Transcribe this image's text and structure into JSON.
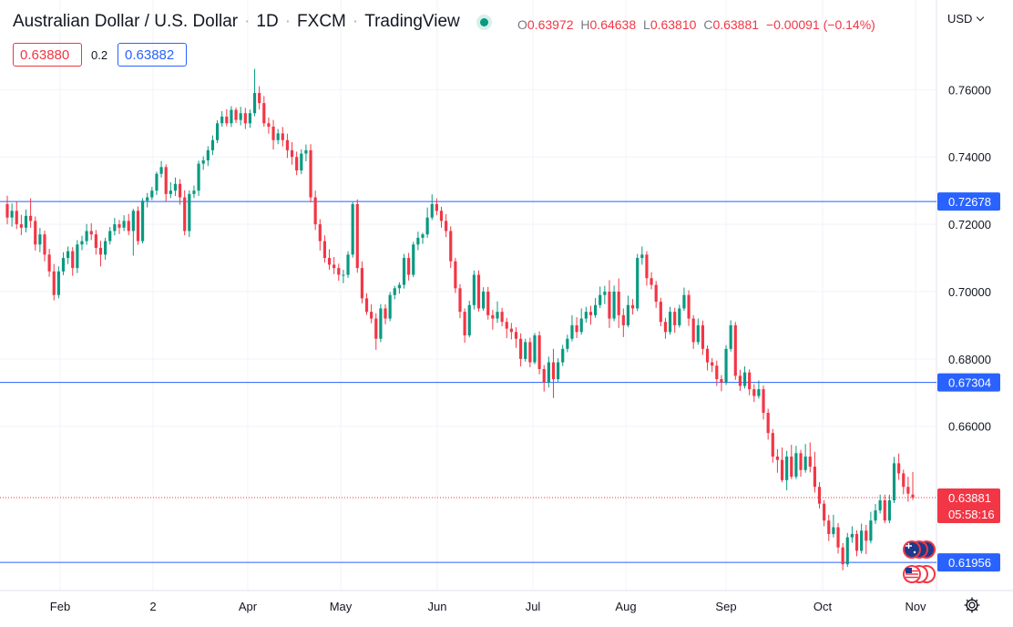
{
  "header": {
    "symbol_name": "Australian Dollar / U.S. Dollar",
    "interval": "1D",
    "exchange": "FXCM",
    "source": "TradingView",
    "ohlc": {
      "o_label": "O",
      "o": "0.63972",
      "h_label": "H",
      "h": "0.64638",
      "l_label": "L",
      "l": "0.63810",
      "c_label": "C",
      "c": "0.63881",
      "change": "−0.00091 (−0.14%)"
    },
    "currency": "USD"
  },
  "trade": {
    "sell_price": "0.63880",
    "spread": "0.2",
    "buy_price": "0.63882"
  },
  "colors": {
    "up": "#089981",
    "down": "#f23645",
    "level_line": "#2962ff",
    "grid": "#f0f3fa"
  },
  "icons": [
    "live-status-icon",
    "currency-chevron-icon",
    "au-flag-icon",
    "us-flag-icon",
    "settings-gear-icon"
  ],
  "chart_data": {
    "type": "candlestick",
    "x_tick_labels": [
      "Feb",
      "2",
      "Apr",
      "May",
      "Jun",
      "Jul",
      "Aug",
      "Sep",
      "Oct",
      "Nov"
    ],
    "y_tick_labels": [
      "0.76000",
      "0.74000",
      "0.72000",
      "0.70000",
      "0.68000",
      "0.66000"
    ],
    "ylim": [
      0.6112,
      0.7758
    ],
    "grid": true,
    "horizontal_levels": [
      {
        "value": 0.72678,
        "label": "0.72678"
      },
      {
        "value": 0.67304,
        "label": "0.67304"
      },
      {
        "value": 0.61956,
        "label": "0.61956"
      }
    ],
    "last_price": {
      "value": 0.63881,
      "label": "0.63881",
      "countdown": "05:58:16"
    },
    "candles": [
      [
        0.726,
        0.7285,
        0.72,
        0.722
      ],
      [
        0.722,
        0.7262,
        0.7193,
        0.724
      ],
      [
        0.724,
        0.7268,
        0.7186,
        0.72
      ],
      [
        0.72,
        0.7228,
        0.7168,
        0.719
      ],
      [
        0.719,
        0.7244,
        0.7176,
        0.7225
      ],
      [
        0.7225,
        0.7277,
        0.719,
        0.721
      ],
      [
        0.721,
        0.7223,
        0.7122,
        0.714
      ],
      [
        0.714,
        0.7189,
        0.7117,
        0.717
      ],
      [
        0.717,
        0.7181,
        0.709,
        0.711
      ],
      [
        0.711,
        0.7127,
        0.7044,
        0.706
      ],
      [
        0.706,
        0.7082,
        0.6974,
        0.699
      ],
      [
        0.699,
        0.7075,
        0.698,
        0.706
      ],
      [
        0.706,
        0.7117,
        0.7049,
        0.71
      ],
      [
        0.71,
        0.7134,
        0.7082,
        0.712
      ],
      [
        0.712,
        0.7132,
        0.7047,
        0.707
      ],
      [
        0.707,
        0.7153,
        0.7055,
        0.714
      ],
      [
        0.714,
        0.7166,
        0.7123,
        0.715
      ],
      [
        0.715,
        0.7201,
        0.7139,
        0.718
      ],
      [
        0.718,
        0.7203,
        0.7153,
        0.717
      ],
      [
        0.717,
        0.7183,
        0.711,
        0.713
      ],
      [
        0.713,
        0.7151,
        0.7075,
        0.711
      ],
      [
        0.711,
        0.716,
        0.7095,
        0.715
      ],
      [
        0.715,
        0.7192,
        0.714,
        0.718
      ],
      [
        0.718,
        0.7219,
        0.7167,
        0.72
      ],
      [
        0.72,
        0.7213,
        0.7171,
        0.719
      ],
      [
        0.719,
        0.7227,
        0.718,
        0.721
      ],
      [
        0.721,
        0.7231,
        0.7168,
        0.718
      ],
      [
        0.718,
        0.7246,
        0.7107,
        0.724
      ],
      [
        0.724,
        0.7253,
        0.7139,
        0.715
      ],
      [
        0.715,
        0.7278,
        0.7143,
        0.727
      ],
      [
        0.727,
        0.7293,
        0.725,
        0.728
      ],
      [
        0.728,
        0.7311,
        0.7272,
        0.73
      ],
      [
        0.73,
        0.7356,
        0.7287,
        0.735
      ],
      [
        0.735,
        0.7388,
        0.7339,
        0.737
      ],
      [
        0.737,
        0.7378,
        0.7268,
        0.729
      ],
      [
        0.729,
        0.7325,
        0.7278,
        0.73
      ],
      [
        0.73,
        0.7339,
        0.7284,
        0.732
      ],
      [
        0.732,
        0.7334,
        0.7258,
        0.728
      ],
      [
        0.728,
        0.7301,
        0.7167,
        0.718
      ],
      [
        0.718,
        0.7301,
        0.7162,
        0.729
      ],
      [
        0.729,
        0.7315,
        0.7278,
        0.73
      ],
      [
        0.73,
        0.7389,
        0.7284,
        0.738
      ],
      [
        0.738,
        0.7402,
        0.7362,
        0.739
      ],
      [
        0.739,
        0.7432,
        0.7373,
        0.742
      ],
      [
        0.742,
        0.7464,
        0.7406,
        0.745
      ],
      [
        0.745,
        0.7509,
        0.7441,
        0.75
      ],
      [
        0.75,
        0.7536,
        0.749,
        0.752
      ],
      [
        0.752,
        0.7542,
        0.7491,
        0.75
      ],
      [
        0.75,
        0.7551,
        0.7489,
        0.754
      ],
      [
        0.754,
        0.7547,
        0.7501,
        0.751
      ],
      [
        0.751,
        0.7549,
        0.7494,
        0.753
      ],
      [
        0.753,
        0.7546,
        0.7483,
        0.75
      ],
      [
        0.75,
        0.7541,
        0.7487,
        0.753
      ],
      [
        0.753,
        0.7662,
        0.7521,
        0.759
      ],
      [
        0.759,
        0.761,
        0.7541,
        0.756
      ],
      [
        0.756,
        0.7581,
        0.749,
        0.75
      ],
      [
        0.75,
        0.7517,
        0.7469,
        0.749
      ],
      [
        0.749,
        0.751,
        0.7422,
        0.745
      ],
      [
        0.745,
        0.7483,
        0.7438,
        0.747
      ],
      [
        0.747,
        0.7489,
        0.7431,
        0.745
      ],
      [
        0.745,
        0.7469,
        0.7397,
        0.742
      ],
      [
        0.742,
        0.7444,
        0.7377,
        0.74
      ],
      [
        0.74,
        0.7416,
        0.7346,
        0.736
      ],
      [
        0.736,
        0.7423,
        0.7349,
        0.741
      ],
      [
        0.741,
        0.7437,
        0.7387,
        0.742
      ],
      [
        0.742,
        0.7438,
        0.7265,
        0.728
      ],
      [
        0.728,
        0.73,
        0.7183,
        0.72
      ],
      [
        0.72,
        0.7215,
        0.7122,
        0.715
      ],
      [
        0.715,
        0.7167,
        0.7086,
        0.71
      ],
      [
        0.71,
        0.7126,
        0.7065,
        0.708
      ],
      [
        0.708,
        0.7103,
        0.7052,
        0.707
      ],
      [
        0.707,
        0.7083,
        0.7032,
        0.705
      ],
      [
        0.705,
        0.7065,
        0.7025,
        0.705
      ],
      [
        0.705,
        0.712,
        0.7041,
        0.711
      ],
      [
        0.711,
        0.7266,
        0.7101,
        0.726
      ],
      [
        0.726,
        0.7274,
        0.7056,
        0.707
      ],
      [
        0.707,
        0.709,
        0.6965,
        0.698
      ],
      [
        0.698,
        0.6995,
        0.6931,
        0.694
      ],
      [
        0.694,
        0.6962,
        0.6906,
        0.692
      ],
      [
        0.692,
        0.6936,
        0.6827,
        0.686
      ],
      [
        0.686,
        0.6963,
        0.685,
        0.695
      ],
      [
        0.695,
        0.6962,
        0.6903,
        0.692
      ],
      [
        0.692,
        0.6999,
        0.6912,
        0.699
      ],
      [
        0.699,
        0.7017,
        0.6977,
        0.701
      ],
      [
        0.701,
        0.7028,
        0.6994,
        0.702
      ],
      [
        0.702,
        0.7112,
        0.7009,
        0.71
      ],
      [
        0.71,
        0.7115,
        0.7033,
        0.705
      ],
      [
        0.705,
        0.7148,
        0.7043,
        0.714
      ],
      [
        0.714,
        0.7178,
        0.7123,
        0.716
      ],
      [
        0.716,
        0.7175,
        0.7142,
        0.717
      ],
      [
        0.717,
        0.725,
        0.716,
        0.722
      ],
      [
        0.722,
        0.7289,
        0.7213,
        0.726
      ],
      [
        0.726,
        0.7277,
        0.7227,
        0.724
      ],
      [
        0.724,
        0.7252,
        0.719,
        0.721
      ],
      [
        0.721,
        0.723,
        0.7162,
        0.718
      ],
      [
        0.718,
        0.7194,
        0.707,
        0.709
      ],
      [
        0.709,
        0.71,
        0.6996,
        0.701
      ],
      [
        0.701,
        0.7022,
        0.6921,
        0.694
      ],
      [
        0.694,
        0.695,
        0.6848,
        0.687
      ],
      [
        0.687,
        0.6973,
        0.6864,
        0.696
      ],
      [
        0.696,
        0.7063,
        0.6947,
        0.705
      ],
      [
        0.705,
        0.7063,
        0.6941,
        0.695
      ],
      [
        0.695,
        0.7013,
        0.6943,
        0.7
      ],
      [
        0.7,
        0.7014,
        0.6917,
        0.693
      ],
      [
        0.693,
        0.6946,
        0.6887,
        0.692
      ],
      [
        0.692,
        0.6971,
        0.6907,
        0.694
      ],
      [
        0.694,
        0.6952,
        0.6897,
        0.691
      ],
      [
        0.691,
        0.6922,
        0.6862,
        0.689
      ],
      [
        0.689,
        0.6907,
        0.6858,
        0.688
      ],
      [
        0.688,
        0.6894,
        0.6833,
        0.686
      ],
      [
        0.686,
        0.6876,
        0.6778,
        0.68
      ],
      [
        0.68,
        0.686,
        0.6792,
        0.685
      ],
      [
        0.685,
        0.6863,
        0.6775,
        0.679
      ],
      [
        0.679,
        0.6877,
        0.6784,
        0.687
      ],
      [
        0.687,
        0.6882,
        0.6754,
        0.677
      ],
      [
        0.677,
        0.6782,
        0.6703,
        0.673
      ],
      [
        0.673,
        0.6807,
        0.6715,
        0.679
      ],
      [
        0.679,
        0.683,
        0.6684,
        0.674
      ],
      [
        0.674,
        0.6802,
        0.6732,
        0.679
      ],
      [
        0.679,
        0.6842,
        0.6779,
        0.683
      ],
      [
        0.683,
        0.6872,
        0.682,
        0.686
      ],
      [
        0.686,
        0.693,
        0.6852,
        0.69
      ],
      [
        0.69,
        0.6924,
        0.6862,
        0.688
      ],
      [
        0.688,
        0.695,
        0.6872,
        0.692
      ],
      [
        0.692,
        0.6955,
        0.6908,
        0.694
      ],
      [
        0.694,
        0.6958,
        0.6902,
        0.693
      ],
      [
        0.693,
        0.6981,
        0.6922,
        0.696
      ],
      [
        0.696,
        0.7015,
        0.6951,
        0.699
      ],
      [
        0.699,
        0.7017,
        0.6963,
        0.7
      ],
      [
        0.7,
        0.7034,
        0.6892,
        0.692
      ],
      [
        0.692,
        0.7018,
        0.6912,
        0.7
      ],
      [
        0.7,
        0.7039,
        0.6892,
        0.693
      ],
      [
        0.693,
        0.695,
        0.6865,
        0.69
      ],
      [
        0.69,
        0.6988,
        0.6894,
        0.696
      ],
      [
        0.696,
        0.6978,
        0.6932,
        0.695
      ],
      [
        0.695,
        0.7112,
        0.6942,
        0.71
      ],
      [
        0.71,
        0.7134,
        0.708,
        0.711
      ],
      [
        0.711,
        0.712,
        0.7018,
        0.704
      ],
      [
        0.704,
        0.7058,
        0.7007,
        0.702
      ],
      [
        0.702,
        0.7032,
        0.6952,
        0.697
      ],
      [
        0.697,
        0.6982,
        0.6897,
        0.691
      ],
      [
        0.691,
        0.6922,
        0.686,
        0.688
      ],
      [
        0.688,
        0.6955,
        0.6872,
        0.694
      ],
      [
        0.694,
        0.6952,
        0.6878,
        0.69
      ],
      [
        0.69,
        0.6961,
        0.6893,
        0.695
      ],
      [
        0.695,
        0.7012,
        0.6943,
        0.699
      ],
      [
        0.699,
        0.7004,
        0.6898,
        0.692
      ],
      [
        0.692,
        0.693,
        0.683,
        0.685
      ],
      [
        0.685,
        0.692,
        0.6842,
        0.69
      ],
      [
        0.69,
        0.6914,
        0.6812,
        0.683
      ],
      [
        0.683,
        0.684,
        0.6766,
        0.679
      ],
      [
        0.679,
        0.6802,
        0.6761,
        0.678
      ],
      [
        0.678,
        0.6795,
        0.672,
        0.674
      ],
      [
        0.674,
        0.6752,
        0.6704,
        0.673
      ],
      [
        0.673,
        0.6841,
        0.6723,
        0.683
      ],
      [
        0.683,
        0.6915,
        0.6822,
        0.69
      ],
      [
        0.69,
        0.691,
        0.6738,
        0.675
      ],
      [
        0.675,
        0.6768,
        0.6705,
        0.672
      ],
      [
        0.672,
        0.6778,
        0.6712,
        0.676
      ],
      [
        0.676,
        0.6769,
        0.6692,
        0.671
      ],
      [
        0.671,
        0.6725,
        0.6672,
        0.669
      ],
      [
        0.669,
        0.6736,
        0.6682,
        0.671
      ],
      [
        0.671,
        0.6721,
        0.662,
        0.664
      ],
      [
        0.664,
        0.6652,
        0.656,
        0.658
      ],
      [
        0.658,
        0.6592,
        0.6492,
        0.651
      ],
      [
        0.651,
        0.6532,
        0.6462,
        0.65
      ],
      [
        0.65,
        0.6537,
        0.6434,
        0.644
      ],
      [
        0.644,
        0.6527,
        0.641,
        0.651
      ],
      [
        0.651,
        0.6545,
        0.6443,
        0.645
      ],
      [
        0.645,
        0.6542,
        0.6443,
        0.652
      ],
      [
        0.652,
        0.653,
        0.645,
        0.647
      ],
      [
        0.647,
        0.6547,
        0.6462,
        0.651
      ],
      [
        0.651,
        0.6552,
        0.6463,
        0.648
      ],
      [
        0.648,
        0.6524,
        0.6403,
        0.642
      ],
      [
        0.642,
        0.6434,
        0.6356,
        0.637
      ],
      [
        0.637,
        0.638,
        0.6303,
        0.632
      ],
      [
        0.632,
        0.6337,
        0.6259,
        0.628
      ],
      [
        0.628,
        0.6337,
        0.627,
        0.63
      ],
      [
        0.63,
        0.6312,
        0.6222,
        0.624
      ],
      [
        0.624,
        0.6253,
        0.6172,
        0.619
      ],
      [
        0.619,
        0.6283,
        0.6182,
        0.627
      ],
      [
        0.627,
        0.6303,
        0.6254,
        0.628
      ],
      [
        0.628,
        0.6291,
        0.6214,
        0.623
      ],
      [
        0.623,
        0.6311,
        0.6222,
        0.629
      ],
      [
        0.629,
        0.6307,
        0.622,
        0.626
      ],
      [
        0.626,
        0.6346,
        0.6252,
        0.632
      ],
      [
        0.632,
        0.6369,
        0.631,
        0.635
      ],
      [
        0.635,
        0.6397,
        0.6341,
        0.638
      ],
      [
        0.638,
        0.6397,
        0.6312,
        0.632
      ],
      [
        0.632,
        0.6397,
        0.6312,
        0.638
      ],
      [
        0.638,
        0.6509,
        0.6372,
        0.649
      ],
      [
        0.649,
        0.6519,
        0.6441,
        0.646
      ],
      [
        0.646,
        0.6471,
        0.6398,
        0.642
      ],
      [
        0.642,
        0.645,
        0.6376,
        0.64
      ],
      [
        0.6397,
        0.6464,
        0.6381,
        0.6388
      ]
    ]
  }
}
